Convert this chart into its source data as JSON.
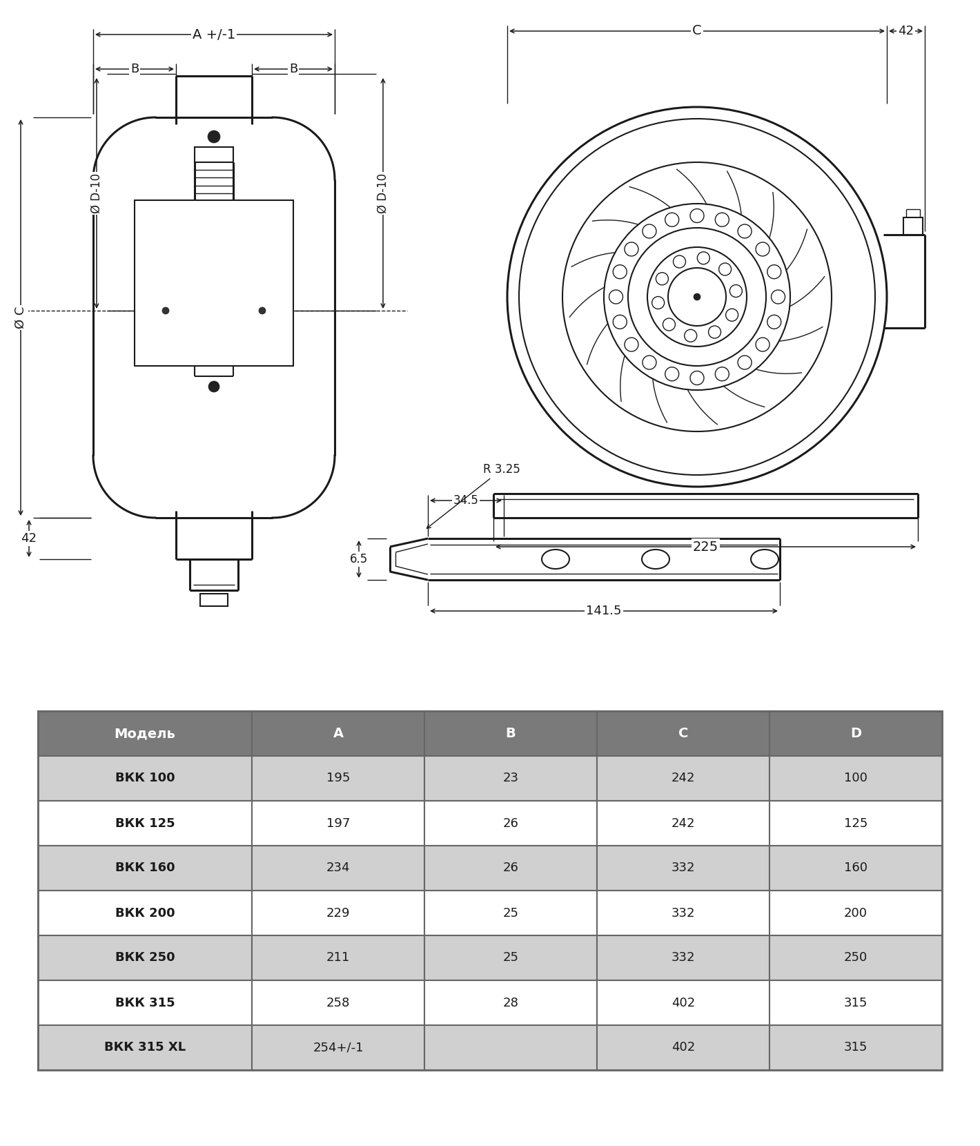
{
  "bg_color": "#ffffff",
  "line_color": "#1a1a1a",
  "table_header_color": "#7a7a7a",
  "table_row_light": "#ffffff",
  "table_row_dark": "#d0d0d0",
  "table_border_color": "#666666",
  "table_headers": [
    "Модель",
    "A",
    "B",
    "C",
    "D"
  ],
  "table_rows": [
    [
      "ВКК 100",
      "195",
      "23",
      "242",
      "100"
    ],
    [
      "ВКК 125",
      "197",
      "26",
      "242",
      "125"
    ],
    [
      "ВКК 160",
      "234",
      "26",
      "332",
      "160"
    ],
    [
      "ВКК 200",
      "229",
      "25",
      "332",
      "200"
    ],
    [
      "ВКК 250",
      "211",
      "25",
      "332",
      "250"
    ],
    [
      "ВКК 315",
      "258",
      "28",
      "402",
      "315"
    ],
    [
      "ВКК 315 XL",
      "254+/-1",
      "",
      "402",
      "315"
    ]
  ],
  "dim_label_A": "A +/-1",
  "dim_label_B": "B",
  "dim_label_C": "C",
  "dim_label_D": "Ø D-10",
  "dim_label_OC": "Ø C",
  "dim_label_42_left": "42",
  "dim_label_42_right": "42",
  "dim_label_225": "225",
  "dim_label_141_5": "141.5",
  "dim_label_34_5": "34.5",
  "dim_label_6_5": "6.5",
  "dim_label_R": "R 3.25"
}
